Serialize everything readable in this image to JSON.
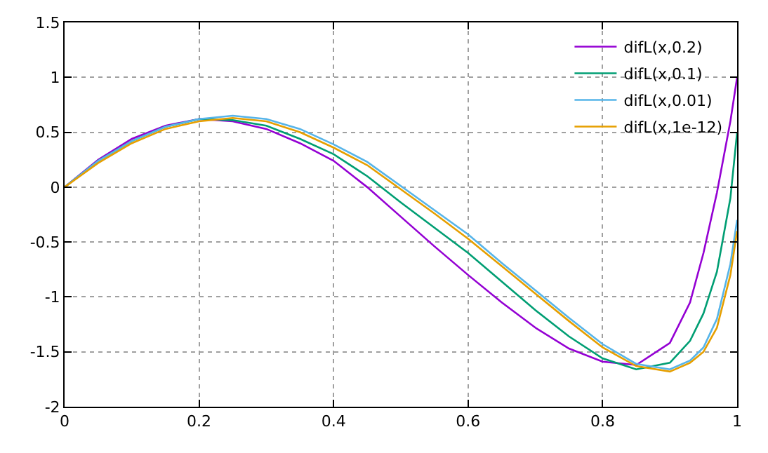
{
  "chart_data": {
    "type": "line",
    "x": [
      0,
      0.05,
      0.1,
      0.15,
      0.2,
      0.25,
      0.3,
      0.35,
      0.4,
      0.45,
      0.5,
      0.55,
      0.6,
      0.65,
      0.7,
      0.75,
      0.8,
      0.85,
      0.9,
      0.93,
      0.95,
      0.97,
      0.99,
      1
    ],
    "series": [
      {
        "name": "difL(x,0.2)",
        "color": "#9400d3",
        "values": [
          0,
          0.25,
          0.44,
          0.56,
          0.62,
          0.6,
          0.53,
          0.4,
          0.24,
          0.0,
          -0.27,
          -0.54,
          -0.8,
          -1.05,
          -1.28,
          -1.47,
          -1.59,
          -1.62,
          -1.42,
          -1.05,
          -0.6,
          -0.05,
          0.6,
          1.0
        ]
      },
      {
        "name": "difL(x,0.1)",
        "color": "#009e73",
        "values": [
          0,
          0.24,
          0.42,
          0.55,
          0.62,
          0.61,
          0.56,
          0.44,
          0.3,
          0.1,
          -0.14,
          -0.37,
          -0.6,
          -0.86,
          -1.12,
          -1.36,
          -1.56,
          -1.66,
          -1.6,
          -1.4,
          -1.15,
          -0.77,
          -0.1,
          0.5
        ]
      },
      {
        "name": "difL(x,0.01)",
        "color": "#56b4e9",
        "values": [
          0,
          0.24,
          0.42,
          0.55,
          0.62,
          0.65,
          0.62,
          0.53,
          0.39,
          0.23,
          0.01,
          -0.21,
          -0.43,
          -0.69,
          -0.94,
          -1.19,
          -1.43,
          -1.61,
          -1.66,
          -1.58,
          -1.46,
          -1.2,
          -0.7,
          -0.3
        ]
      },
      {
        "name": "difL(x,1e-12)",
        "color": "#e69f00",
        "values": [
          0,
          0.22,
          0.4,
          0.53,
          0.6,
          0.63,
          0.6,
          0.5,
          0.36,
          0.2,
          -0.02,
          -0.24,
          -0.47,
          -0.72,
          -0.97,
          -1.22,
          -1.46,
          -1.63,
          -1.68,
          -1.6,
          -1.5,
          -1.28,
          -0.8,
          -0.4
        ]
      }
    ],
    "xlim": [
      0,
      1
    ],
    "xticks": [
      0,
      0.2,
      0.4,
      0.6,
      0.8,
      1
    ],
    "ylim": [
      -2,
      1.5
    ],
    "yticks": [
      -2,
      -1.5,
      -1,
      -0.5,
      0,
      0.5,
      1,
      1.5
    ],
    "grid": true,
    "legend": "top right",
    "line_style": "solid",
    "marker": "none"
  }
}
